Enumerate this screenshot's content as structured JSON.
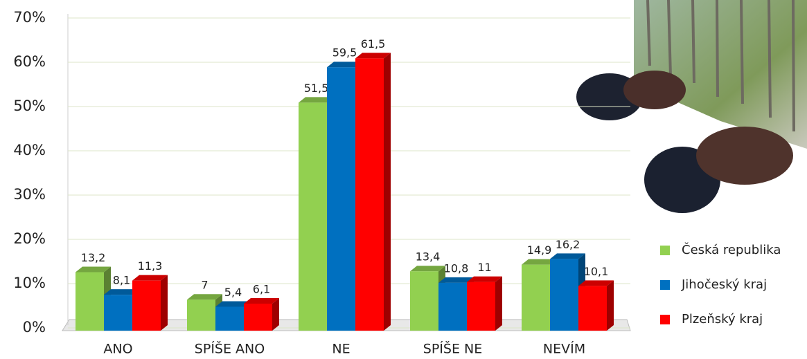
{
  "chart_data": {
    "type": "bar",
    "categories": [
      "ANO",
      "SPÍŠE ANO",
      "NE",
      "SPÍŠE NE",
      "NEVÍM"
    ],
    "series": [
      {
        "name": "Česká republika",
        "color": "#92d050",
        "values": [
          13.2,
          7,
          51.5,
          13.4,
          14.9
        ],
        "value_labels": [
          "13,2",
          "7",
          "51,5",
          "13,4",
          "14,9"
        ]
      },
      {
        "name": "Jihočeský kraj",
        "color": "#0070c0",
        "values": [
          8.1,
          5.4,
          59.5,
          10.8,
          16.2
        ],
        "value_labels": [
          "8,1",
          "5,4",
          "59,5",
          "10,8",
          "16,2"
        ]
      },
      {
        "name": "Plzeňský kraj",
        "color": "#ff0000",
        "values": [
          11.3,
          6.1,
          61.5,
          11,
          10.1
        ],
        "value_labels": [
          "11,3",
          "6,1",
          "61,5",
          "11",
          "10,1"
        ]
      }
    ],
    "ylim": [
      0,
      70
    ],
    "yticks": [
      {
        "value": 0,
        "label": "0%"
      },
      {
        "value": 10,
        "label": "10%"
      },
      {
        "value": 20,
        "label": "20%"
      },
      {
        "value": 30,
        "label": "30%"
      },
      {
        "value": 40,
        "label": "40%"
      },
      {
        "value": 50,
        "label": "50%"
      },
      {
        "value": 60,
        "label": "60%"
      },
      {
        "value": 70,
        "label": "70%"
      }
    ],
    "grid": true,
    "legend": "right"
  }
}
